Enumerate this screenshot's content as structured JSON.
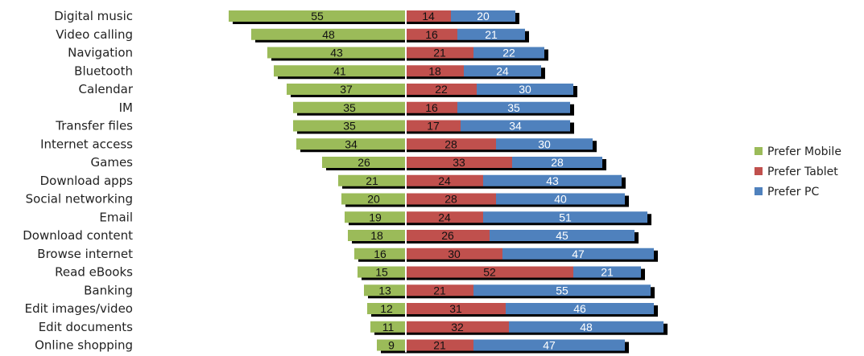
{
  "chart_data": {
    "type": "bar",
    "orientation": "horizontal",
    "stacked": true,
    "diverging": true,
    "categories": [
      "Digital music",
      "Video calling",
      "Navigation",
      "Bluetooth",
      "Calendar",
      "IM",
      "Transfer files",
      "Internet access",
      "Games",
      "Download apps",
      "Social networking",
      "Email",
      "Download content",
      "Browse internet",
      "Read eBooks",
      "Banking",
      "Edit images/video",
      "Edit documents",
      "Online shopping"
    ],
    "series": [
      {
        "name": "Prefer Mobile",
        "color": "#9bbb59",
        "side": "left",
        "label_color": "#111111",
        "values": [
          55,
          48,
          43,
          41,
          37,
          35,
          35,
          34,
          26,
          21,
          20,
          19,
          18,
          16,
          15,
          13,
          12,
          11,
          9
        ]
      },
      {
        "name": "Prefer Tablet",
        "color": "#c0504d",
        "side": "right",
        "label_color": "#111111",
        "values": [
          14,
          16,
          21,
          18,
          22,
          16,
          17,
          28,
          33,
          24,
          28,
          24,
          26,
          30,
          52,
          21,
          31,
          32,
          21
        ]
      },
      {
        "name": "Prefer PC",
        "color": "#4f81bd",
        "side": "right",
        "label_color": "#ffffff",
        "values": [
          20,
          21,
          22,
          24,
          30,
          35,
          34,
          30,
          28,
          43,
          40,
          51,
          45,
          47,
          21,
          55,
          46,
          48,
          47
        ]
      }
    ],
    "legend_position": "right",
    "grid": false,
    "data_labels": true
  }
}
